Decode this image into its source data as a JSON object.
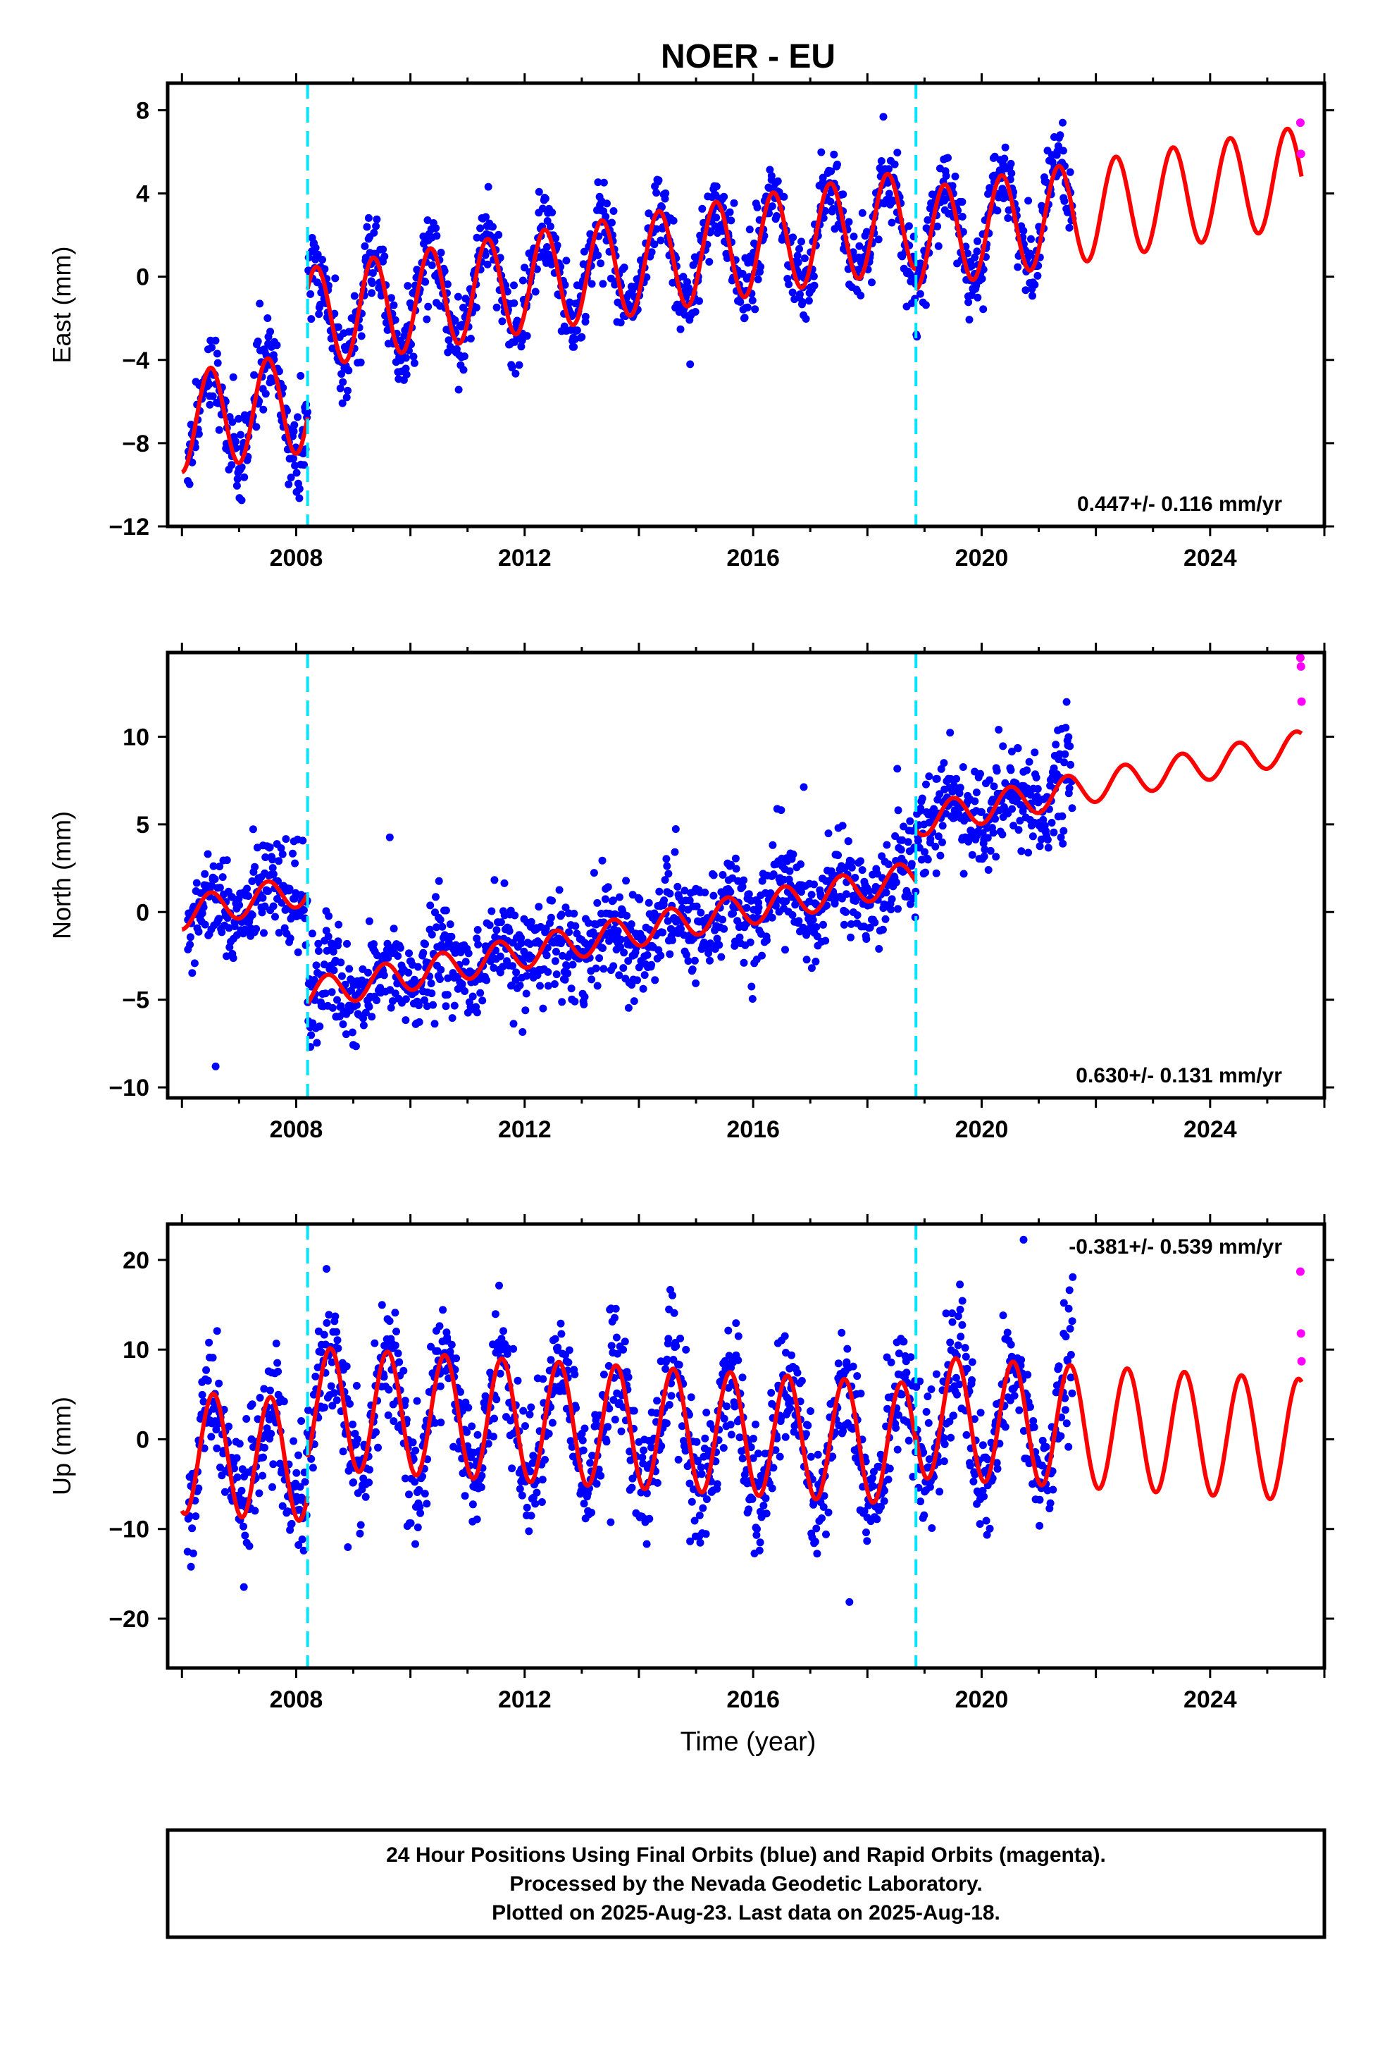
{
  "title": "NOER - EU",
  "xlabel": "Time (year)",
  "caption": {
    "line1": "24 Hour Positions Using Final Orbits (blue) and Rapid Orbits (magenta).",
    "line2": "Processed by the Nevada Geodetic Laboratory.",
    "line3": "Plotted on 2025-Aug-23. Last data on 2025-Aug-18."
  },
  "colors": {
    "final": "#0000ff",
    "rapid": "#ff00ff",
    "model": "#ff0000",
    "break": "#00e5ff",
    "frame": "#000000"
  },
  "chart_data": [
    {
      "type": "scatter",
      "component": "east",
      "ylabel": "East (mm)",
      "rate_label": "0.447+/- 0.116 mm/yr",
      "xlim": [
        2005.75,
        2026.0
      ],
      "ylim": [
        -12,
        9.3
      ],
      "x_ticks": [
        2008,
        2012,
        2016,
        2020,
        2024
      ],
      "y_ticks": [
        -12,
        -8,
        -4,
        0,
        4,
        8
      ],
      "breaks": [
        2008.2,
        2018.85
      ],
      "model": {
        "pieces": [
          {
            "t0": 2006.0,
            "t1": 2008.2,
            "intercept": -7.0,
            "slope": 0.447,
            "amp": 2.4,
            "phase_year": 2006.5
          },
          {
            "t0": 2008.2,
            "t1": 2018.85,
            "intercept": -2.0,
            "slope": 0.447,
            "amp": 2.4,
            "phase_year": 2008.35
          },
          {
            "t0": 2018.85,
            "t1": 2025.6,
            "intercept": 1.8,
            "slope": 0.447,
            "amp": 2.4,
            "phase_year": 2019.35
          }
        ]
      },
      "final_data": {
        "x_range": [
          2006.1,
          2021.6
        ],
        "noise": 0.9
      },
      "rapid_points": [
        {
          "x": 2025.58,
          "y": 7.4
        },
        {
          "x": 2025.59,
          "y": 5.9
        }
      ]
    },
    {
      "type": "scatter",
      "component": "north",
      "ylabel": "North (mm)",
      "rate_label": "0.630+/- 0.131 mm/yr",
      "xlim": [
        2005.75,
        2026.0
      ],
      "ylim": [
        -10.6,
        14.8
      ],
      "x_ticks": [
        2008,
        2012,
        2016,
        2020,
        2024
      ],
      "y_ticks": [
        -10,
        -5,
        0,
        5,
        10
      ],
      "breaks": [
        2008.2,
        2018.85
      ],
      "model": {
        "pieces": [
          {
            "t0": 2006.0,
            "t1": 2008.2,
            "intercept": -0.1,
            "slope": 0.63,
            "amp": 0.9,
            "phase_year": 2006.5
          },
          {
            "t0": 2008.2,
            "t1": 2018.85,
            "intercept": -4.7,
            "slope": 0.63,
            "amp": 0.9,
            "phase_year": 2008.55
          },
          {
            "t0": 2018.85,
            "t1": 2025.6,
            "intercept": 5.2,
            "slope": 0.63,
            "amp": 0.9,
            "phase_year": 2019.5
          }
        ]
      },
      "final_data": {
        "x_range": [
          2006.1,
          2021.6
        ],
        "noise": 1.4
      },
      "rapid_points": [
        {
          "x": 2025.58,
          "y": 14.5
        },
        {
          "x": 2025.59,
          "y": 14.0
        },
        {
          "x": 2025.6,
          "y": 12.0
        }
      ]
    },
    {
      "type": "scatter",
      "component": "up",
      "ylabel": "Up (mm)",
      "rate_label": "-0.381+/- 0.539 mm/yr",
      "xlim": [
        2005.75,
        2026.0
      ],
      "ylim": [
        -25.5,
        24
      ],
      "x_ticks": [
        2008,
        2012,
        2016,
        2020,
        2024
      ],
      "y_ticks": [
        -20,
        -10,
        0,
        10,
        20
      ],
      "breaks": [
        2008.2,
        2018.85
      ],
      "model": {
        "pieces": [
          {
            "t0": 2006.0,
            "t1": 2008.2,
            "intercept": -1.5,
            "slope": -0.381,
            "amp": 6.8,
            "phase_year": 2006.55
          },
          {
            "t0": 2008.2,
            "t1": 2018.85,
            "intercept": 3.5,
            "slope": -0.381,
            "amp": 6.8,
            "phase_year": 2008.6
          },
          {
            "t0": 2018.85,
            "t1": 2025.6,
            "intercept": 2.5,
            "slope": -0.381,
            "amp": 6.8,
            "phase_year": 2019.55
          }
        ]
      },
      "final_data": {
        "x_range": [
          2006.1,
          2021.6
        ],
        "noise": 3.4
      },
      "rapid_points": [
        {
          "x": 2025.58,
          "y": 18.7
        },
        {
          "x": 2025.59,
          "y": 11.8
        },
        {
          "x": 2025.6,
          "y": 8.7
        }
      ]
    }
  ]
}
